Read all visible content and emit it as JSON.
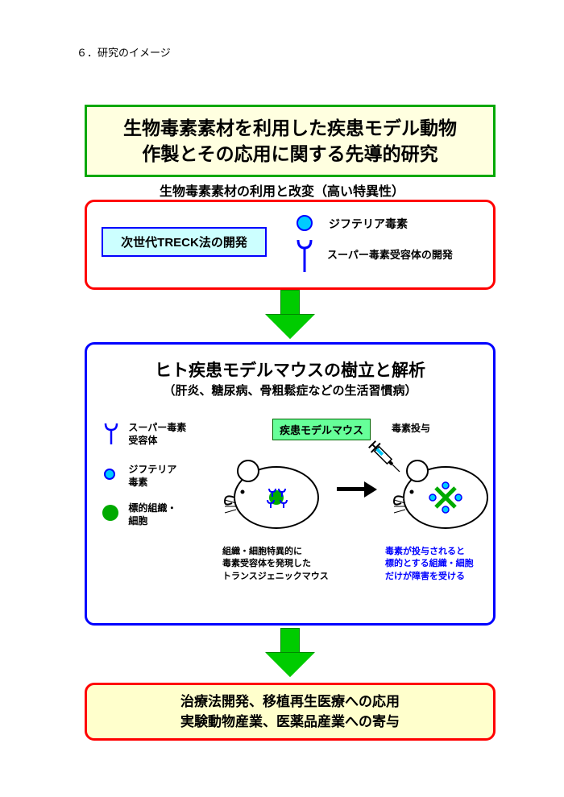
{
  "header": {
    "text": "６．研究のイメージ"
  },
  "title": {
    "line1": "生物毒素素材を利用した疾患モデル動物",
    "line2": "作製とその応用に関する先導的研究",
    "border_color": "#00a800",
    "bg_color": "#ffffe0"
  },
  "section1": {
    "heading": "生物毒素素材の利用と改変（高い特異性）",
    "treck_label": "次世代TRECK法の開発",
    "toxin_label": "ジフテリア毒素",
    "receptor_label": "スーパー毒素受容体の開発",
    "border_color": "#ff0000",
    "treck_bg": "#ccffff",
    "treck_border": "#0000ff",
    "toxin_color": "#00ccff",
    "icon_stroke": "#0000ff"
  },
  "arrow": {
    "fill": "#00cc00",
    "stroke": "#008800"
  },
  "section2": {
    "title": "ヒト疾患モデルマウスの樹立と解析",
    "subtitle": "（肝炎、糖尿病、骨粗鬆症などの生活習慣病）",
    "border_color": "#0000ff",
    "legend1": "スーパー毒素\n受容体",
    "legend2": "ジフテリア\n毒素",
    "legend3": "標的組織・\n細胞",
    "badge": "疾患モデルマウス",
    "badge_bg": "#66ff99",
    "dose_label": "毒素投与",
    "caption1": "組織・細胞特異的に\n毒素受容体を発現した\nトランスジェニックマウス",
    "caption2": "毒素が投与されると\n標的とする組織・細胞\nだけが障害を受ける",
    "caption2_color": "#0000ff",
    "target_green": "#00aa00"
  },
  "section3": {
    "line1": "治療法開発、移植再生医療への応用",
    "line2": "実験動物産業、医薬品産業への寄与",
    "border_color": "#ff0000",
    "bg_color": "#ffffcc"
  }
}
